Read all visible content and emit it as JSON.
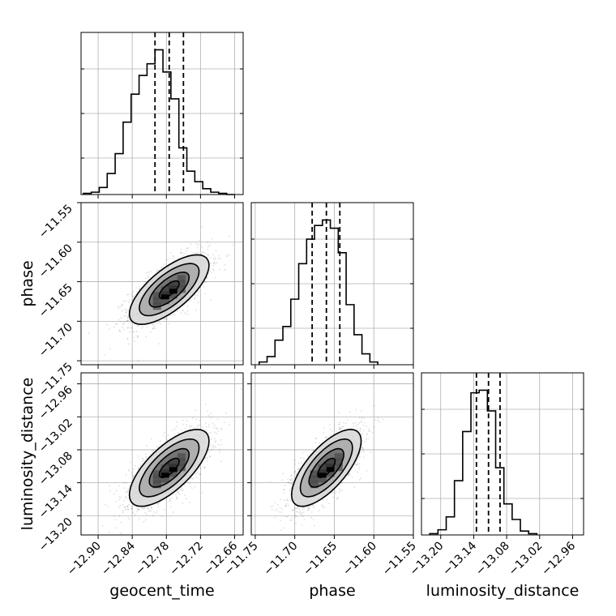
{
  "chart_data": {
    "type": "corner",
    "parameters": [
      {
        "name": "geocent_time",
        "label": "geocent_time",
        "range": [
          -12.93,
          -12.645
        ],
        "ticks": [
          -12.9,
          -12.84,
          -12.78,
          -12.72,
          -12.66
        ],
        "tick_labels": [
          "−12.90",
          "−12.84",
          "−12.78",
          "−12.72",
          "−12.66"
        ],
        "quantiles": [
          -12.8,
          -12.775,
          -12.75
        ]
      },
      {
        "name": "phase",
        "label": "phase",
        "range": [
          -11.755,
          -11.55
        ],
        "ticks": [
          -11.75,
          -11.7,
          -11.65,
          -11.6,
          -11.55
        ],
        "tick_labels": [
          "−11.75",
          "−11.70",
          "−11.65",
          "−11.60",
          "−11.55"
        ],
        "quantiles": [
          -11.678,
          -11.66,
          -11.643
        ]
      },
      {
        "name": "luminosity_distance",
        "label": "luminosity_distance",
        "range": [
          -13.235,
          -12.94
        ],
        "ticks": [
          -13.2,
          -13.14,
          -13.08,
          -13.02,
          -12.96
        ],
        "tick_labels": [
          "−13.20",
          "−13.14",
          "−13.08",
          "−13.02",
          "−12.96"
        ],
        "quantiles": [
          -13.135,
          -13.113,
          -13.092
        ]
      }
    ],
    "histograms": [
      {
        "parameter": "geocent_time",
        "bin_edges": [
          -12.926,
          -12.912,
          -12.898,
          -12.884,
          -12.87,
          -12.856,
          -12.842,
          -12.828,
          -12.814,
          -12.8,
          -12.786,
          -12.772,
          -12.758,
          -12.744,
          -12.73,
          -12.716,
          -12.702,
          -12.688,
          -12.674,
          -12.66
        ],
        "counts": [
          1,
          2,
          6,
          18,
          35,
          62,
          86,
          102,
          112,
          124,
          105,
          82,
          40,
          20,
          11,
          5,
          2,
          1,
          0
        ]
      },
      {
        "parameter": "phase",
        "bin_edges": [
          -11.745,
          -11.735,
          -11.725,
          -11.715,
          -11.705,
          -11.695,
          -11.685,
          -11.675,
          -11.665,
          -11.655,
          -11.645,
          -11.635,
          -11.625,
          -11.615,
          -11.605,
          -11.595
        ],
        "counts": [
          2,
          6,
          18,
          28,
          48,
          74,
          92,
          102,
          106,
          100,
          82,
          44,
          22,
          8,
          2
        ]
      },
      {
        "parameter": "luminosity_distance",
        "bin_edges": [
          -13.22,
          -13.205,
          -13.19,
          -13.175,
          -13.16,
          -13.145,
          -13.13,
          -13.115,
          -13.1,
          -13.085,
          -13.07,
          -13.055,
          -13.04,
          -13.025
        ],
        "counts": [
          1,
          4,
          14,
          42,
          80,
          110,
          112,
          96,
          52,
          24,
          12,
          3,
          1
        ]
      }
    ],
    "pairs": [
      {
        "x": "geocent_time",
        "y": "phase",
        "center": [
          -12.775,
          -11.66
        ],
        "sigma": [
          0.035,
          0.022
        ],
        "correlation": 0.7
      },
      {
        "x": "geocent_time",
        "y": "luminosity_distance",
        "center": [
          -12.775,
          -13.113
        ],
        "sigma": [
          0.035,
          0.035
        ],
        "correlation": 0.7
      },
      {
        "x": "phase",
        "y": "luminosity_distance",
        "center": [
          -11.66,
          -13.113
        ],
        "sigma": [
          0.022,
          0.035
        ],
        "correlation": 0.7
      }
    ],
    "contour_levels_sigma": [
      0.5,
      1.0,
      1.5,
      2.0
    ],
    "grid": true
  }
}
